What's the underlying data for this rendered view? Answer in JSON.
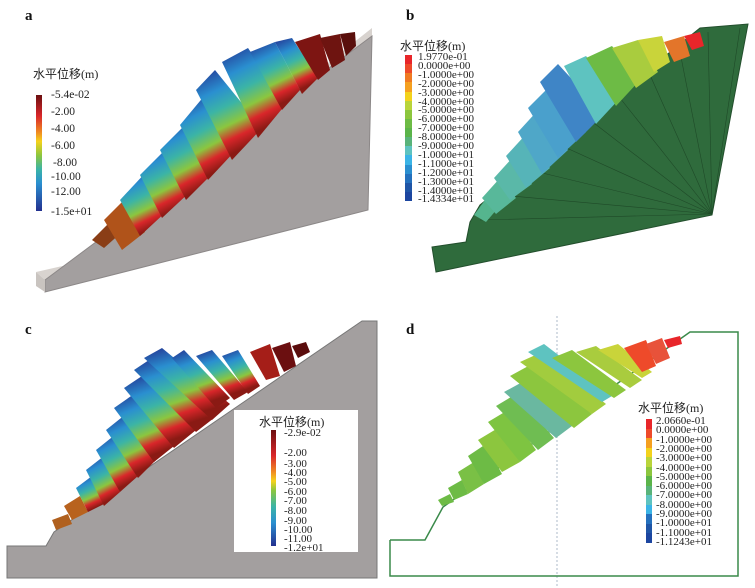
{
  "panels": [
    {
      "label": "a",
      "legend": {
        "title": "水平位移(m)",
        "ticks": [
          "-5.4e-02",
          "-2.00",
          "-4.00",
          "-6.00",
          "-8.00",
          "-10.00",
          "-12.00",
          "-1.5e+01"
        ]
      }
    },
    {
      "label": "b",
      "legend": {
        "title": "水平位移(m)",
        "ticks": [
          "1.9770e-01",
          "0.0000e+00",
          "-1.0000e+00",
          "-2.0000e+00",
          "-3.0000e+00",
          "-4.0000e+00",
          "-5.0000e+00",
          "-6.0000e+00",
          "-7.0000e+00",
          "-8.0000e+00",
          "-9.0000e+00",
          "-1.0000e+01",
          "-1.1000e+01",
          "-1.2000e+01",
          "-1.3000e+01",
          "-1.4000e+01",
          "-1.4334e+01"
        ]
      }
    },
    {
      "label": "c",
      "legend": {
        "title": "水平位移(m)",
        "ticks": [
          "-2.9e-02",
          "-2.00",
          "-3.00",
          "-4.00",
          "-5.00",
          "-6.00",
          "-7.00",
          "-8.00",
          "-9.00",
          "-10.00",
          "-11.00",
          "-1.2e+01"
        ]
      }
    },
    {
      "label": "d",
      "legend": {
        "title": "水平位移(m)",
        "ticks": [
          "2.0660e-01",
          "0.0000e+00",
          "-1.0000e+00",
          "-2.0000e+00",
          "-3.0000e+00",
          "-4.0000e+00",
          "-5.0000e+00",
          "-6.0000e+00",
          "-7.0000e+00",
          "-8.0000e+00",
          "-9.0000e+00",
          "-1.0000e+01",
          "-1.1000e+01",
          "-1.1243e+01"
        ]
      }
    }
  ],
  "colors": {
    "slope_gray": "#a39f9f",
    "slope_green": "#2f6b3c",
    "outline_green": "#3a8a4a",
    "discrete_scale": [
      "#e8262a",
      "#ee4a2a",
      "#f07a22",
      "#f5a020",
      "#f3d21c",
      "#b9d43a",
      "#8cc63e",
      "#6dbb45",
      "#5bb44a",
      "#59b37a",
      "#5ec3c0",
      "#3bb4e6",
      "#2a8fd0",
      "#2470bd",
      "#1f55a6",
      "#1c46a0"
    ],
    "continuous_scale": [
      "#6b0f10",
      "#d9262a",
      "#f08a22",
      "#f5d21c",
      "#8cc63e",
      "#3bb4a6",
      "#2a8fd0",
      "#23308f"
    ]
  }
}
